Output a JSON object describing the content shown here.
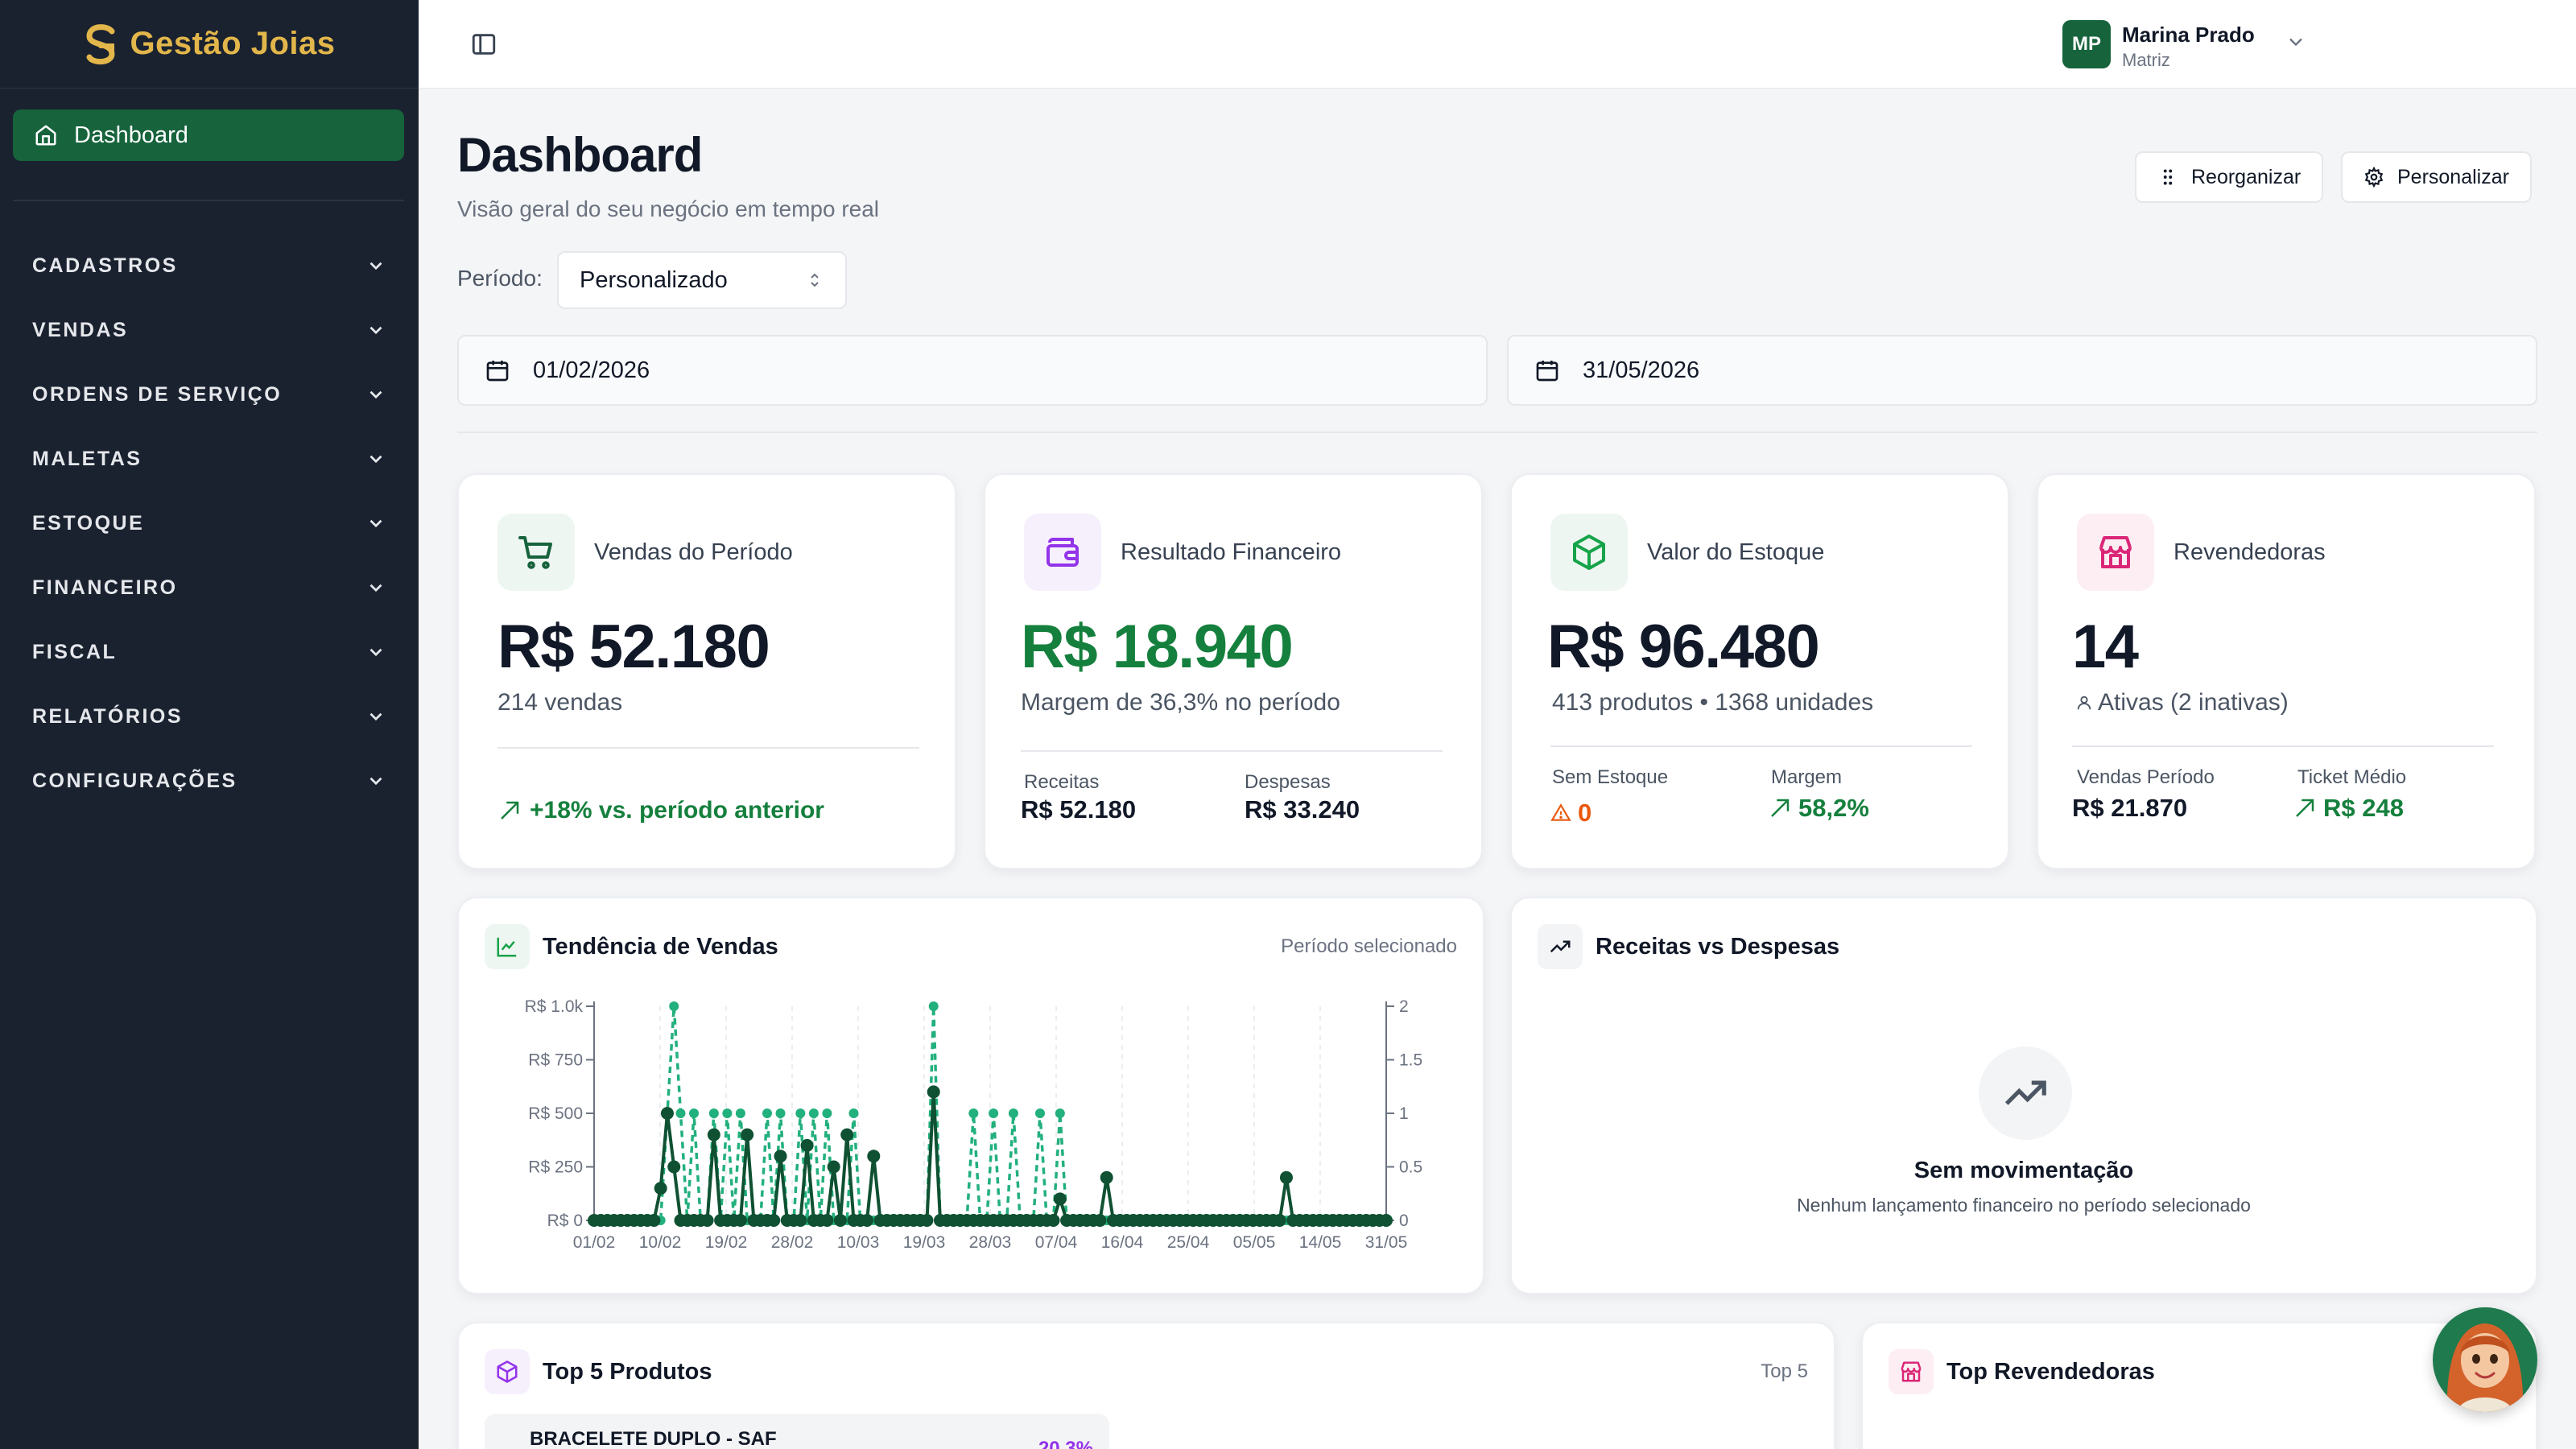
{
  "brand": {
    "name": "Gestão Joias",
    "color": "#e2b64a"
  },
  "sidebar": {
    "active": {
      "label": "Dashboard",
      "icon": "home-icon"
    },
    "groups": [
      {
        "label": "CADASTROS"
      },
      {
        "label": "VENDAS"
      },
      {
        "label": "ORDENS DE SERVIÇO"
      },
      {
        "label": "MALETAS"
      },
      {
        "label": "ESTOQUE"
      },
      {
        "label": "FINANCEIRO"
      },
      {
        "label": "FISCAL"
      },
      {
        "label": "RELATÓRIOS"
      },
      {
        "label": "CONFIGURAÇÕES"
      }
    ]
  },
  "user": {
    "initials": "MP",
    "name": "Marina Prado",
    "role": "Matriz"
  },
  "header": {
    "title": "Dashboard",
    "subtitle": "Visão geral do seu negócio em tempo real",
    "reorganize_label": "Reorganizar",
    "customize_label": "Personalizar"
  },
  "filters": {
    "period_label": "Período:",
    "period_value": "Personalizado",
    "start_date": "01/02/2026",
    "end_date": "31/05/2026"
  },
  "kpis": {
    "sales": {
      "title": "Vendas do Período",
      "value": "R$ 52.180",
      "sub": "214 vendas",
      "trend": "+18% vs. período anterior"
    },
    "finance": {
      "title": "Resultado Financeiro",
      "value": "R$ 18.940",
      "sub": "Margem de 36,3% no período",
      "income_label": "Receitas",
      "income_value": "R$ 52.180",
      "expense_label": "Despesas",
      "expense_value": "R$ 33.240"
    },
    "stock": {
      "title": "Valor do Estoque",
      "value": "R$ 96.480",
      "sub": "413 produtos • 1368 unidades",
      "out_label": "Sem Estoque",
      "out_value": "0",
      "margin_label": "Margem",
      "margin_value": "58,2%"
    },
    "resellers": {
      "title": "Revendedoras",
      "value": "14",
      "sub": "Ativas (2 inativas)",
      "sales_label": "Vendas Período",
      "sales_value": "R$ 21.870",
      "ticket_label": "Ticket Médio",
      "ticket_value": "R$ 248"
    }
  },
  "trend_panel": {
    "title": "Tendência de Vendas",
    "meta": "Período selecionado"
  },
  "finance_panel": {
    "title": "Receitas vs Despesas",
    "empty_title": "Sem movimentação",
    "empty_text": "Nenhum lançamento financeiro no período selecionado"
  },
  "top_products": {
    "title": "Top 5 Produtos",
    "meta": "Top 5",
    "items": [
      {
        "name": "BRACELETE DUPLO - SAF",
        "pct": "20,3%"
      }
    ]
  },
  "top_resellers": {
    "title": "Top Revendedoras"
  },
  "chart_data": {
    "type": "line",
    "x_ticks": [
      "01/02",
      "10/02",
      "19/02",
      "28/02",
      "10/03",
      "19/03",
      "28/03",
      "07/04",
      "16/04",
      "25/04",
      "05/05",
      "14/05",
      "31/05"
    ],
    "y_left_ticks": [
      "R$ 0",
      "R$ 250",
      "R$ 500",
      "R$ 750",
      "R$ 1.0k"
    ],
    "y_left_range": [
      0,
      1000
    ],
    "y_right_ticks": [
      "0",
      "0.5",
      "1",
      "1.5",
      "2"
    ],
    "y_right_range": [
      0,
      2
    ],
    "series": [
      {
        "axis": "left",
        "color": "#0f5132",
        "values": [
          0,
          0,
          0,
          0,
          0,
          0,
          0,
          0,
          0,
          0,
          150,
          500,
          250,
          0,
          0,
          0,
          0,
          0,
          400,
          0,
          0,
          0,
          0,
          400,
          0,
          0,
          0,
          0,
          300,
          0,
          0,
          0,
          350,
          0,
          0,
          0,
          250,
          0,
          400,
          0,
          0,
          0,
          300,
          0,
          0,
          0,
          0,
          0,
          0,
          0,
          0,
          600,
          0,
          0,
          0,
          0,
          0,
          0,
          0,
          0,
          0,
          0,
          0,
          0,
          0,
          0,
          0,
          0,
          0,
          0,
          100,
          0,
          0,
          0,
          0,
          0,
          0,
          200,
          0,
          0,
          0,
          0,
          0,
          0,
          0,
          0,
          0,
          0,
          0,
          0,
          0,
          0,
          0,
          0,
          0,
          0,
          0,
          0,
          0,
          0,
          0,
          0,
          0,
          0,
          200,
          0,
          0,
          0,
          0,
          0,
          0,
          0,
          0,
          0,
          0,
          0,
          0,
          0,
          0,
          0
        ]
      },
      {
        "axis": "right",
        "color": "#22b07d",
        "values": [
          0,
          0,
          0,
          0,
          0,
          0,
          0,
          0,
          0,
          0,
          0,
          1,
          2,
          1,
          0,
          1,
          0,
          0,
          1,
          0,
          1,
          0,
          1,
          0,
          0,
          0,
          1,
          0,
          1,
          0,
          0,
          1,
          0,
          1,
          0,
          1,
          0,
          0,
          0,
          1,
          0,
          0,
          0,
          0,
          0,
          0,
          0,
          0,
          0,
          0,
          0,
          2,
          0,
          0,
          0,
          0,
          0,
          1,
          0,
          0,
          1,
          0,
          0,
          1,
          0,
          0,
          0,
          1,
          0,
          0,
          1,
          0,
          0,
          0,
          0,
          0,
          0,
          0,
          0,
          0,
          0,
          0,
          0,
          0,
          0,
          0,
          0,
          0,
          0,
          0,
          0,
          0,
          0,
          0,
          0,
          0,
          0,
          0,
          0,
          0,
          0,
          0,
          0,
          0,
          0,
          0,
          0,
          0,
          0,
          0,
          0,
          0,
          0,
          0,
          0,
          0,
          0,
          0,
          0,
          0
        ]
      }
    ]
  },
  "colors": {
    "accent": "#16633c",
    "sidebar": "#1a2230",
    "positive": "#15803d",
    "warning": "#ea580c"
  }
}
